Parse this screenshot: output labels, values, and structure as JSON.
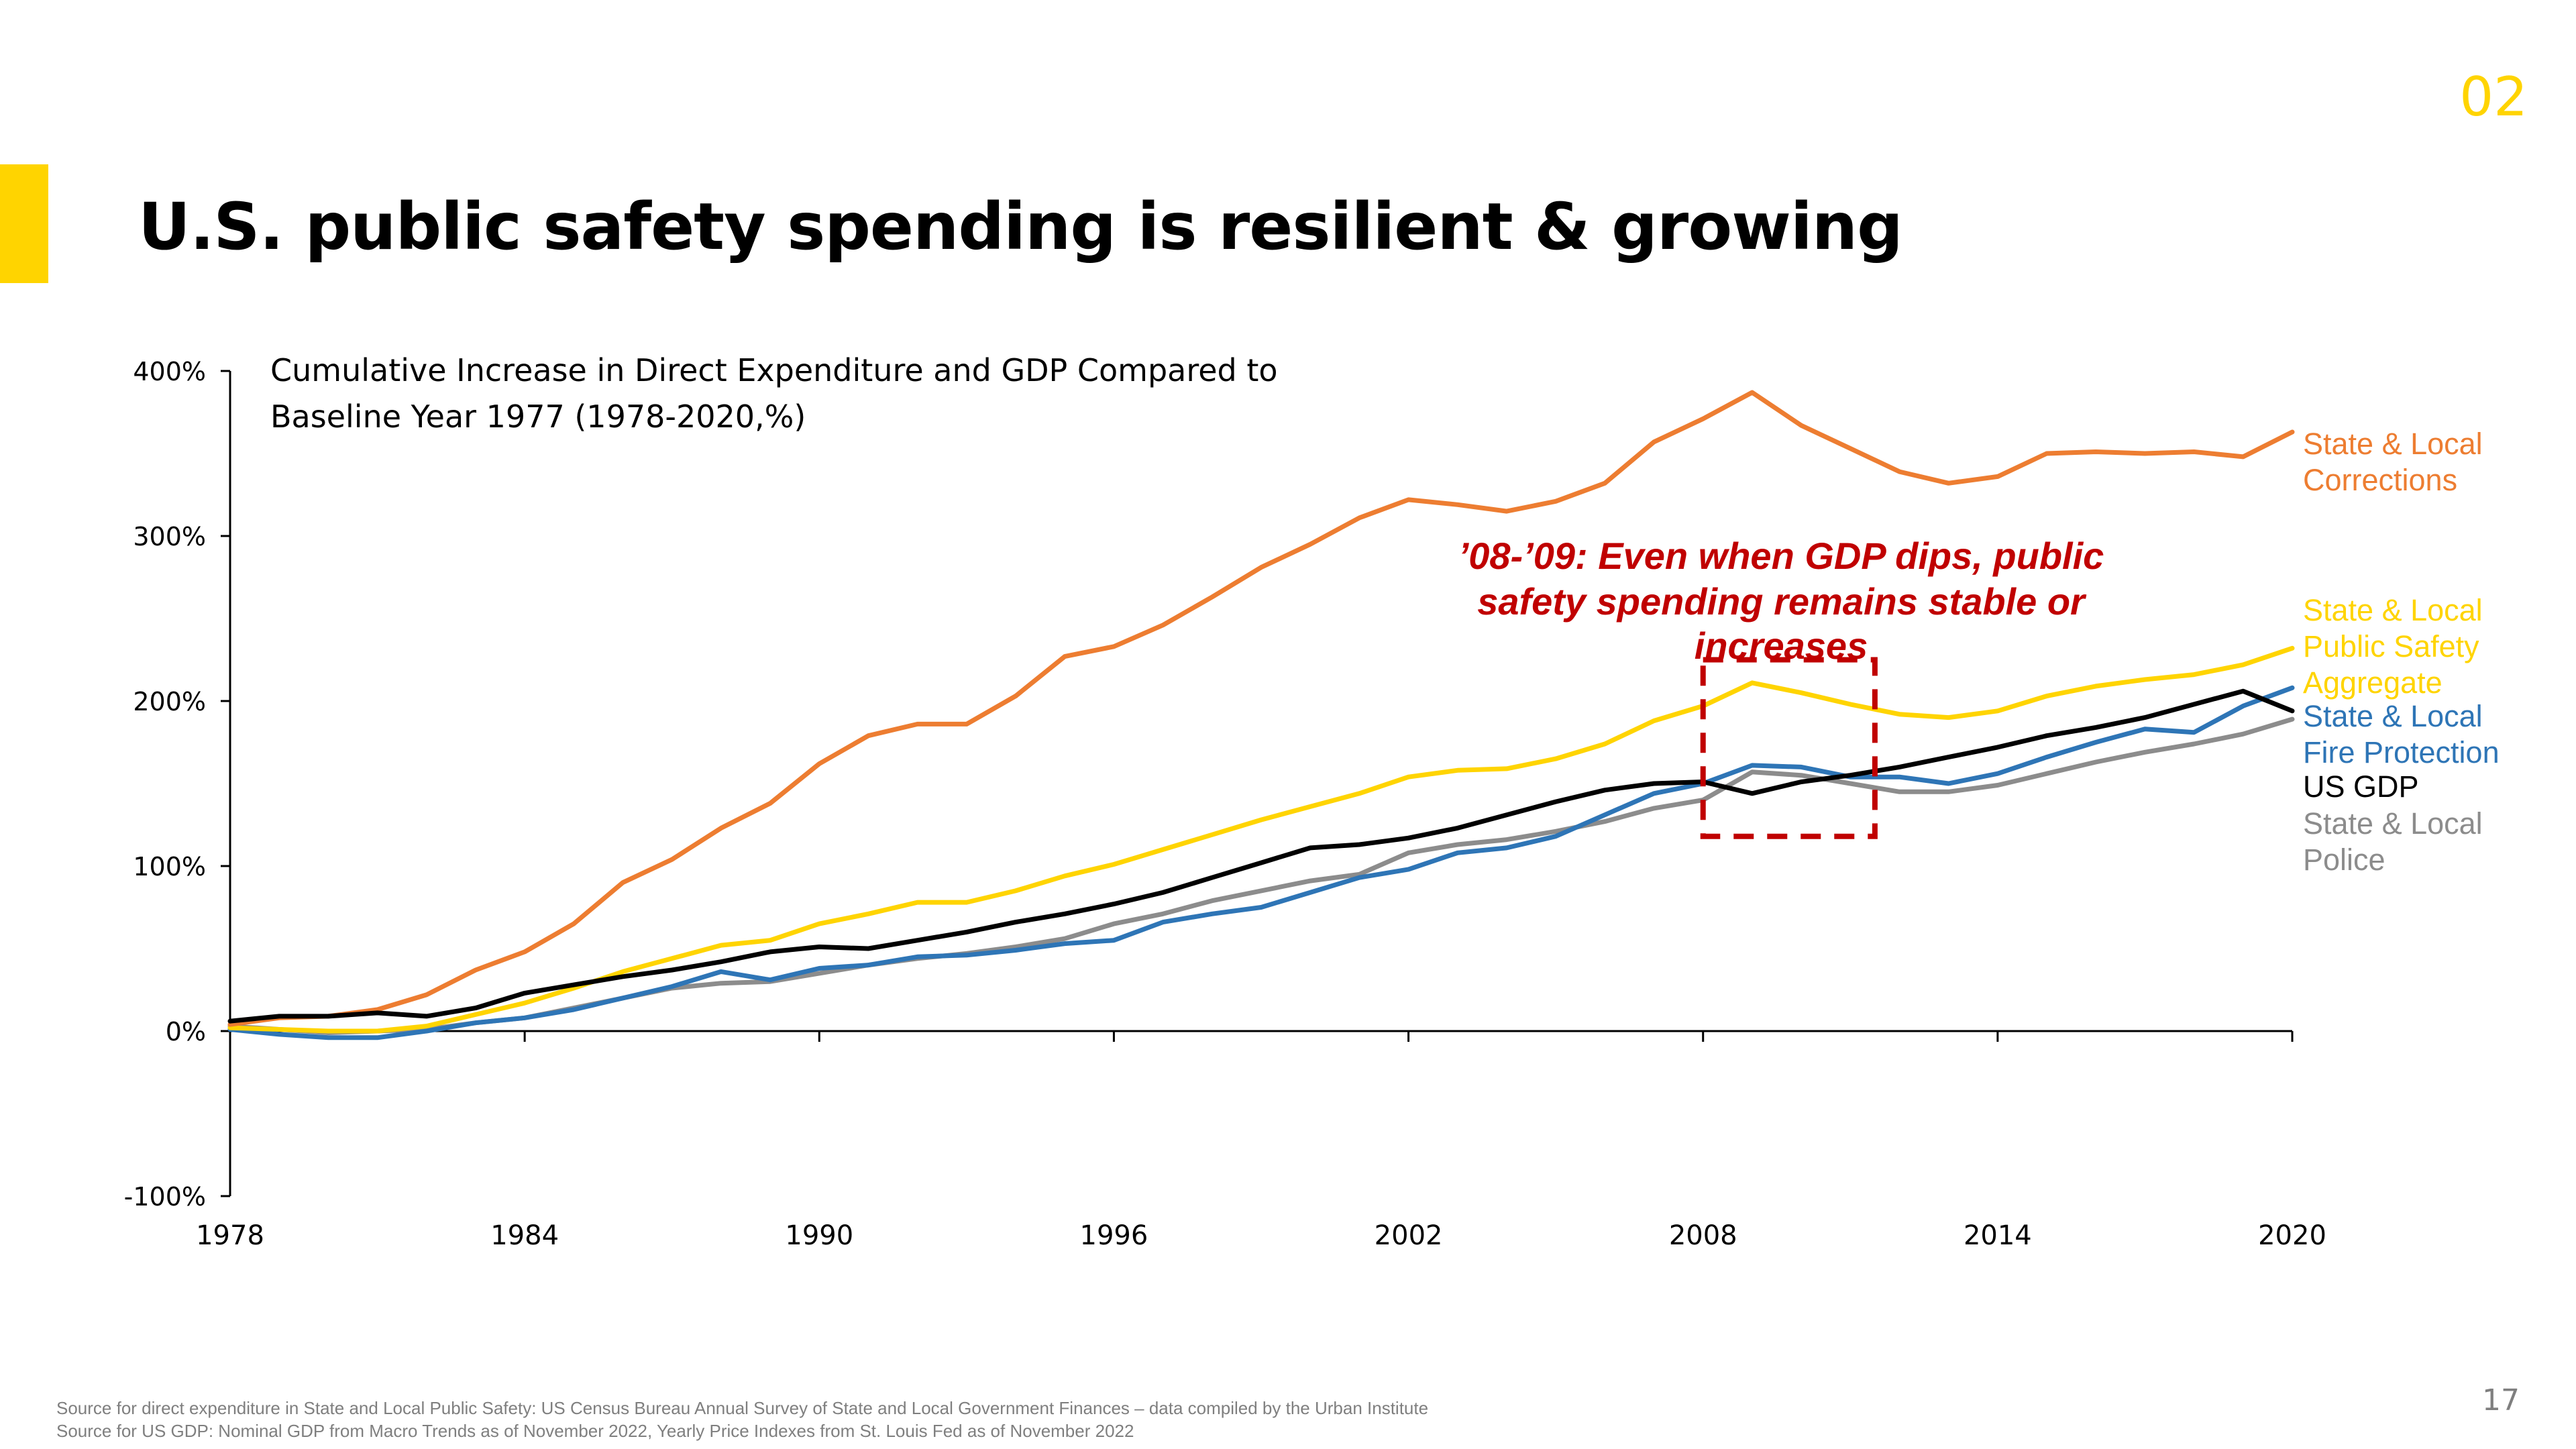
{
  "slide": {
    "section_number": "02",
    "title": "U.S. public safety spending is resilient & growing",
    "page_number": "17",
    "accent_color": "#FFD400"
  },
  "footnotes": [
    "Source for direct expenditure in State and Local Public Safety:  US Census Bureau Annual Survey of State and Local Government Finances – data compiled by the Urban Institute",
    "Source for US GDP: Nominal GDP from Macro Trends as of November 2022, Yearly Price Indexes from St. Louis Fed as of November 2022"
  ],
  "chart_data": {
    "type": "line",
    "title_lines": [
      "Cumulative Increase in Direct Expenditure and GDP Compared to",
      "Baseline Year 1977 (1978-2020,%)"
    ],
    "xlabel": "",
    "ylabel": "",
    "x": [
      1978,
      1979,
      1980,
      1981,
      1982,
      1983,
      1984,
      1985,
      1986,
      1987,
      1988,
      1989,
      1990,
      1991,
      1992,
      1993,
      1994,
      1995,
      1996,
      1997,
      1998,
      1999,
      2000,
      2001,
      2002,
      2003,
      2004,
      2005,
      2006,
      2007,
      2008,
      2009,
      2010,
      2011,
      2012,
      2013,
      2014,
      2015,
      2016,
      2017,
      2018,
      2019,
      2020
    ],
    "xlim": [
      1978,
      2020
    ],
    "x_ticks": [
      1978,
      1984,
      1990,
      1996,
      2002,
      2008,
      2014,
      2020
    ],
    "x_tick_labels": [
      "1978",
      "1984",
      "1990",
      "1996",
      "2002",
      "2008",
      "2014",
      "2020"
    ],
    "ylim": [
      -100,
      400
    ],
    "y_ticks": [
      -100,
      0,
      100,
      200,
      300,
      400
    ],
    "y_tick_labels": [
      "-100%",
      "0%",
      "100%",
      "200%",
      "300%",
      "400%"
    ],
    "grid": false,
    "series": [
      {
        "name": "State & Local Corrections",
        "label_lines": [
          "State & Local",
          "Corrections"
        ],
        "color": "#ED7D31",
        "values": [
          4,
          8,
          9,
          13,
          22,
          37,
          48,
          65,
          90,
          104,
          123,
          138,
          162,
          179,
          186,
          186,
          203,
          227,
          233,
          246,
          263,
          281,
          295,
          311,
          322,
          319,
          315,
          321,
          332,
          357,
          371,
          387,
          367,
          353,
          339,
          332,
          336,
          350,
          351,
          350,
          351,
          348,
          363
        ]
      },
      {
        "name": "State & Local Public Safety Aggregate",
        "label_lines": [
          "State & Local",
          "Public Safety",
          "Aggregate"
        ],
        "color": "#FFD400",
        "values": [
          2,
          1,
          0,
          0,
          3,
          10,
          17,
          26,
          36,
          44,
          52,
          55,
          65,
          71,
          78,
          78,
          85,
          94,
          101,
          110,
          119,
          128,
          136,
          144,
          154,
          158,
          159,
          165,
          174,
          188,
          197,
          211,
          205,
          198,
          192,
          190,
          194,
          203,
          209,
          213,
          216,
          222,
          232
        ]
      },
      {
        "name": "State & Local Fire Protection",
        "label_lines": [
          "State & Local",
          "Fire Protection"
        ],
        "color": "#2E75B6",
        "values": [
          1,
          -2,
          -4,
          -4,
          0,
          5,
          8,
          13,
          20,
          27,
          36,
          31,
          38,
          40,
          45,
          46,
          49,
          53,
          55,
          66,
          71,
          75,
          84,
          93,
          98,
          108,
          111,
          118,
          131,
          144,
          150,
          161,
          160,
          154,
          154,
          150,
          156,
          166,
          175,
          183,
          181,
          197,
          208
        ]
      },
      {
        "name": "US GDP",
        "label_lines": [
          "US GDP"
        ],
        "color": "#000000",
        "values": [
          6,
          9,
          9,
          11,
          9,
          14,
          23,
          28,
          33,
          37,
          42,
          48,
          51,
          50,
          55,
          60,
          66,
          71,
          77,
          84,
          93,
          102,
          111,
          113,
          117,
          123,
          131,
          139,
          146,
          150,
          151,
          144,
          151,
          155,
          160,
          166,
          172,
          179,
          184,
          190,
          198,
          206,
          194
        ]
      },
      {
        "name": "State & Local Police",
        "label_lines": [
          "State & Local",
          "Police"
        ],
        "color": "#8C8C8C",
        "values": [
          3,
          1,
          -1,
          0,
          1,
          5,
          8,
          14,
          20,
          26,
          29,
          30,
          35,
          40,
          44,
          47,
          51,
          56,
          65,
          71,
          79,
          85,
          91,
          95,
          108,
          113,
          116,
          121,
          127,
          135,
          140,
          157,
          155,
          150,
          145,
          145,
          149,
          156,
          163,
          169,
          174,
          180,
          189
        ]
      }
    ],
    "annotation": {
      "lines": [
        "’08-’09: Even when GDP dips, public",
        "safety spending remains stable or",
        "increases"
      ],
      "color": "#C00000",
      "box_x_range": [
        2008,
        2011.5
      ],
      "box_y_range": [
        118,
        225
      ]
    }
  }
}
